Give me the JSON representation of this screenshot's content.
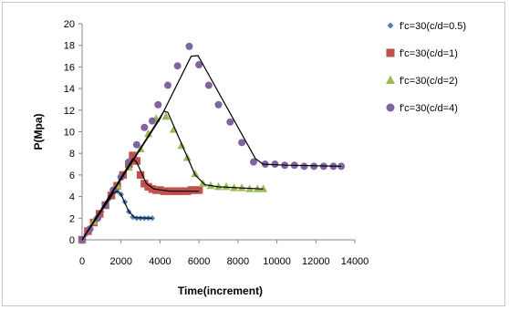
{
  "chart_data": {
    "type": "scatter",
    "title": "",
    "xlabel": "Time(increment)",
    "ylabel": "P(Mpa)",
    "xlim": [
      0,
      14000
    ],
    "ylim": [
      0,
      20
    ],
    "x_ticks": [
      "0",
      "2000",
      "4000",
      "6000",
      "8000",
      "10000",
      "12000",
      "14000"
    ],
    "y_ticks": [
      "0",
      "2",
      "4",
      "6",
      "8",
      "10",
      "12",
      "14",
      "16",
      "18",
      "20"
    ],
    "grid": false,
    "legend_position": "right",
    "series": [
      {
        "name": "f'c=30(c/d=0.5)",
        "color": "#4f81bd",
        "marker": "diamond",
        "points": [
          [
            0,
            0
          ],
          [
            200,
            0.5
          ],
          [
            400,
            1.0
          ],
          [
            600,
            1.5
          ],
          [
            800,
            2.0
          ],
          [
            1000,
            2.6
          ],
          [
            1200,
            3.2
          ],
          [
            1400,
            3.8
          ],
          [
            1600,
            4.3
          ],
          [
            1800,
            4.5
          ],
          [
            2000,
            4.2
          ],
          [
            2200,
            3.5
          ],
          [
            2400,
            2.6
          ],
          [
            2600,
            2.1
          ],
          [
            2800,
            2.0
          ],
          [
            3000,
            2.0
          ],
          [
            3200,
            2.0
          ],
          [
            3400,
            2.0
          ],
          [
            3600,
            2.0
          ]
        ],
        "fit": [
          [
            0,
            0
          ],
          [
            1600,
            4.3
          ],
          [
            1800,
            4.5
          ],
          [
            2000,
            4.2
          ],
          [
            2400,
            2.6
          ],
          [
            2700,
            2.05
          ],
          [
            3600,
            2.0
          ]
        ]
      },
      {
        "name": "f'c=30(c/d=1)",
        "color": "#c0504d",
        "marker": "square",
        "points": [
          [
            0,
            0
          ],
          [
            300,
            0.8
          ],
          [
            600,
            1.6
          ],
          [
            900,
            2.4
          ],
          [
            1200,
            3.2
          ],
          [
            1500,
            4.1
          ],
          [
            1800,
            5.0
          ],
          [
            2100,
            6.0
          ],
          [
            2400,
            7.0
          ],
          [
            2600,
            7.8
          ],
          [
            2800,
            7.3
          ],
          [
            3000,
            6.0
          ],
          [
            3200,
            5.2
          ],
          [
            3400,
            4.9
          ],
          [
            3600,
            4.7
          ],
          [
            3800,
            4.6
          ],
          [
            4000,
            4.6
          ],
          [
            4200,
            4.5
          ],
          [
            4400,
            4.5
          ],
          [
            4600,
            4.5
          ],
          [
            4800,
            4.5
          ],
          [
            5000,
            4.5
          ],
          [
            5200,
            4.5
          ],
          [
            5400,
            4.5
          ],
          [
            5600,
            4.6
          ],
          [
            5800,
            4.6
          ],
          [
            6000,
            4.6
          ]
        ],
        "fit": [
          [
            0,
            0
          ],
          [
            2600,
            7.5
          ],
          [
            2800,
            7.2
          ],
          [
            3300,
            5.2
          ],
          [
            3700,
            4.7
          ],
          [
            4500,
            4.5
          ],
          [
            6000,
            4.5
          ]
        ]
      },
      {
        "name": "f'c=30(c/d=2)",
        "color": "#9bbb59",
        "marker": "triangle",
        "points": [
          [
            0,
            0
          ],
          [
            600,
            1.7
          ],
          [
            1200,
            3.3
          ],
          [
            1800,
            5.0
          ],
          [
            2400,
            6.7
          ],
          [
            3000,
            8.4
          ],
          [
            3400,
            9.8
          ],
          [
            3800,
            11.2
          ],
          [
            4300,
            11.4
          ],
          [
            4700,
            10.2
          ],
          [
            5100,
            8.7
          ],
          [
            5400,
            7.6
          ],
          [
            5800,
            6.1
          ],
          [
            6200,
            5.2
          ],
          [
            6600,
            5.0
          ],
          [
            7000,
            4.9
          ],
          [
            7400,
            4.9
          ],
          [
            7800,
            4.8
          ],
          [
            8200,
            4.8
          ],
          [
            8600,
            4.7
          ],
          [
            9000,
            4.7
          ],
          [
            9300,
            4.7
          ]
        ],
        "fit": [
          [
            0,
            0
          ],
          [
            4200,
            11.9
          ],
          [
            4400,
            11.8
          ],
          [
            5800,
            6.0
          ],
          [
            6300,
            5.1
          ],
          [
            7000,
            4.9
          ],
          [
            9300,
            4.7
          ]
        ]
      },
      {
        "name": "f'c=30(c/d=4)",
        "color": "#8064a2",
        "marker": "circle",
        "points": [
          [
            0,
            0
          ],
          [
            400,
            1.0
          ],
          [
            800,
            2.0
          ],
          [
            1200,
            3.2
          ],
          [
            1600,
            4.6
          ],
          [
            2000,
            5.8
          ],
          [
            2400,
            7.2
          ],
          [
            2800,
            8.8
          ],
          [
            3200,
            10.4
          ],
          [
            3600,
            11.0
          ],
          [
            3900,
            12.5
          ],
          [
            4400,
            14.3
          ],
          [
            4900,
            16.1
          ],
          [
            5500,
            17.9
          ],
          [
            6000,
            16.2
          ],
          [
            6500,
            14.3
          ],
          [
            7000,
            12.5
          ],
          [
            7600,
            10.9
          ],
          [
            8200,
            9.0
          ],
          [
            8800,
            7.2
          ],
          [
            9400,
            7.0
          ],
          [
            9900,
            7.0
          ],
          [
            10400,
            6.9
          ],
          [
            10900,
            6.9
          ],
          [
            11400,
            6.8
          ],
          [
            11900,
            6.8
          ],
          [
            12400,
            6.8
          ],
          [
            12900,
            6.8
          ],
          [
            13300,
            6.8
          ]
        ],
        "fit": [
          [
            0,
            0
          ],
          [
            2000,
            5.6
          ],
          [
            4000,
            11.2
          ],
          [
            5600,
            17.0
          ],
          [
            5950,
            17.05
          ],
          [
            8900,
            7.5
          ],
          [
            9300,
            7.0
          ],
          [
            10500,
            6.9
          ],
          [
            13300,
            6.8
          ]
        ]
      }
    ]
  }
}
